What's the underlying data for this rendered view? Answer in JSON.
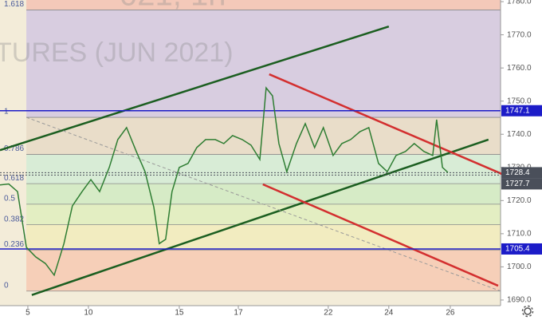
{
  "chart_data": {
    "type": "line",
    "watermark": [
      "021, 1h",
      "TURES (JUN 2021)"
    ],
    "x": [
      0,
      2.9,
      5.8,
      8.7,
      11.8,
      15,
      17.9,
      21.1,
      23.9,
      27.1,
      30,
      32.9,
      36.1,
      38.9,
      41.8,
      45,
      47.9,
      50.8,
      52.6,
      54.7,
      56.8,
      59.2,
      62.1,
      65,
      67.9,
      71.1,
      73.9,
      76.8,
      80,
      82.9,
      85.8,
      87.9,
      90,
      92.1,
      94.7,
      97.9,
      100.8,
      103.9,
      106.8,
      110,
      112.9,
      115.8,
      118.9,
      121.8,
      125,
      127.9,
      130.8,
      133.9,
      136.8,
      140,
      142.9,
      144.2,
      146.1,
      147.9
    ],
    "series": [
      {
        "color": "#2e7d32",
        "values": [
          1724.7,
          1725,
          1722.7,
          1705.9,
          1703,
          1701,
          1697.5,
          1707,
          1718.4,
          1722.7,
          1726.3,
          1722.7,
          1730,
          1738.4,
          1742,
          1734.8,
          1728.7,
          1718,
          1707,
          1708.3,
          1722.7,
          1730,
          1731.2,
          1736,
          1738.4,
          1738.4,
          1737.2,
          1739.6,
          1738.4,
          1736.7,
          1732.4,
          1754,
          1751.6,
          1737.2,
          1728.7,
          1737.2,
          1743.2,
          1736,
          1742,
          1733.6,
          1737.2,
          1738.4,
          1740.8,
          1742,
          1731.2,
          1728.7,
          1733.6,
          1734.8,
          1737.2,
          1734.8,
          1733.6,
          1744.4,
          1730,
          1728.5
        ]
      }
    ],
    "xlim": [
      0,
      165.3
    ],
    "xticks": [
      {
        "value": 9.2,
        "label": "5"
      },
      {
        "value": 29.2,
        "label": "10"
      },
      {
        "value": 59.2,
        "label": "15"
      },
      {
        "value": 78.7,
        "label": "17"
      },
      {
        "value": 108.4,
        "label": "22"
      },
      {
        "value": 128.4,
        "label": "24"
      },
      {
        "value": 148.7,
        "label": "26"
      }
    ],
    "ylim": [
      1688.3,
      1780.5
    ],
    "yticks": [
      {
        "value": 1690,
        "label": "1690.0"
      },
      {
        "value": 1700,
        "label": "1700.0"
      },
      {
        "value": 1710,
        "label": "1710.0"
      },
      {
        "value": 1720,
        "label": "1720.0"
      },
      {
        "value": 1730,
        "label": "1730.0"
      },
      {
        "value": 1740,
        "label": "1740.0"
      },
      {
        "value": 1750,
        "label": "1750.0"
      },
      {
        "value": 1760,
        "label": "1760.0"
      },
      {
        "value": 1770,
        "label": "1770.0"
      },
      {
        "value": 1780,
        "label": "1780.0"
      }
    ],
    "fib": {
      "x": [
        8.7,
        165.3
      ],
      "top_color": "#f4c9b9",
      "levels": [
        {
          "level": 0,
          "price": 1692.7,
          "color": "#f6cfb8"
        },
        {
          "level": 0.236,
          "price": 1705.1,
          "color": "#f2ecc0"
        },
        {
          "level": 0.382,
          "price": 1712.7,
          "color": "#e3eec2"
        },
        {
          "level": 0.5,
          "price": 1718.9,
          "color": "#d6ebc6"
        },
        {
          "level": 0.618,
          "price": 1725.1,
          "color": "#d8ecd6"
        },
        {
          "level": 0.786,
          "price": 1733.9,
          "color": "#e9ddc9"
        },
        {
          "level": 1,
          "price": 1745.1,
          "color": "#d8cde0"
        },
        {
          "level": 1.618,
          "price": 1777.5,
          "color": "#f4c9b9"
        }
      ]
    },
    "price_lines": [
      {
        "value": 1747.1,
        "label": "1747.1",
        "color": "#1c1cc8"
      },
      {
        "value": 1728.4,
        "label": "1728.4",
        "color": "#4a4f5a"
      },
      {
        "value": 1727.7,
        "label": "1727.7",
        "color": "#4a4f5a"
      },
      {
        "value": 1705.4,
        "label": "1705.4",
        "color": "#1c1cc8"
      }
    ],
    "trendlines": [
      {
        "color": "#1b5e20",
        "points": [
          [
            0,
            1735.2
          ],
          [
            128.4,
            1772.5
          ]
        ]
      },
      {
        "color": "#1b5e20",
        "points": [
          [
            10.5,
            1691.5
          ],
          [
            161.3,
            1738.4
          ]
        ]
      },
      {
        "color": "#d32f2f",
        "points": [
          [
            88.9,
            1758.1
          ],
          [
            165.8,
            1728.0
          ]
        ]
      },
      {
        "color": "#d32f2f",
        "points": [
          [
            86.8,
            1724.9
          ],
          [
            164.5,
            1694.3
          ]
        ]
      },
      {
        "color": "#999999",
        "dashed": true,
        "points": [
          [
            8.7,
            1745.1
          ],
          [
            165.3,
            1692.7
          ]
        ]
      }
    ]
  }
}
